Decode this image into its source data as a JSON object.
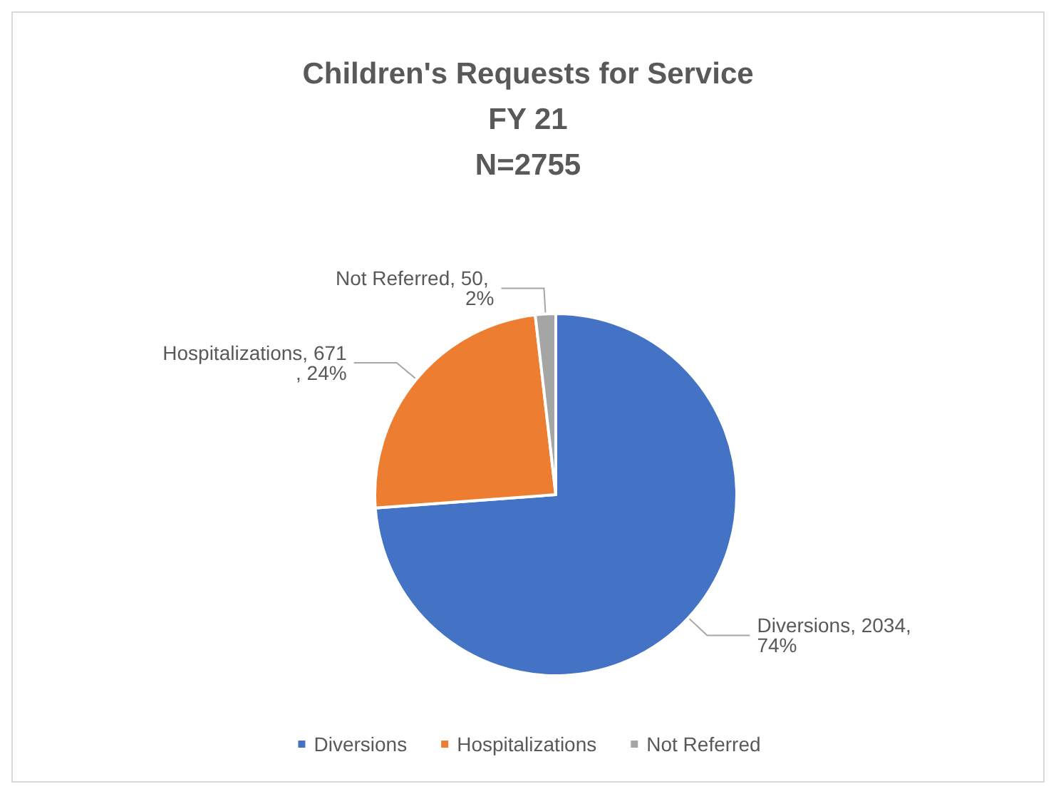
{
  "chart_data": {
    "type": "pie",
    "title": "Children's Requests for Service\nFY 21\nN=2755",
    "categories": [
      "Diversions",
      "Hospitalizations",
      "Not Referred"
    ],
    "values": [
      2034,
      671,
      50
    ],
    "colors": [
      "#4472c4",
      "#ed7d31",
      "#a5a5a5"
    ],
    "value_labels": [
      "Diversions, 2034, 74%",
      "Hospitalizations, 671, 24%",
      "Not Referred, 50, 2%"
    ],
    "legend": "bottom"
  }
}
